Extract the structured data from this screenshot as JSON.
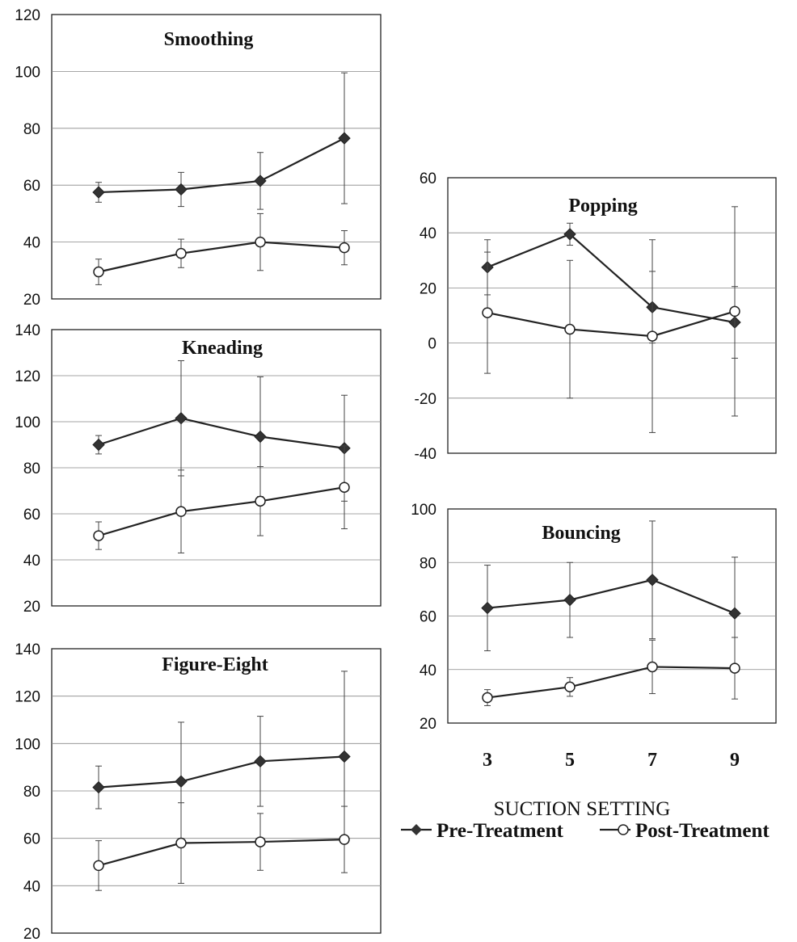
{
  "chart_data": [
    {
      "type": "line",
      "title": "Smoothing",
      "x": [
        3,
        5,
        7,
        9
      ],
      "ylim": [
        20,
        120
      ],
      "yticks": [
        20,
        40,
        60,
        80,
        100,
        120
      ],
      "grid": true,
      "series": [
        {
          "name": "Pre-Treatment",
          "marker": "diamond-filled",
          "values": [
            57.5,
            58.5,
            61.5,
            76.5
          ],
          "error": [
            3.5,
            6,
            10,
            23
          ]
        },
        {
          "name": "Post-Treatment",
          "marker": "circle-open",
          "values": [
            29.5,
            36,
            40,
            38
          ],
          "error": [
            4.5,
            5,
            10,
            6
          ]
        }
      ]
    },
    {
      "type": "line",
      "title": "Kneading",
      "x": [
        3,
        5,
        7,
        9
      ],
      "ylim": [
        20,
        140
      ],
      "yticks": [
        20,
        40,
        60,
        80,
        100,
        120,
        140
      ],
      "grid": true,
      "series": [
        {
          "name": "Pre-Treatment",
          "marker": "diamond-filled",
          "values": [
            90,
            101.5,
            93.5,
            88.5
          ],
          "error": [
            4,
            25,
            26,
            23
          ]
        },
        {
          "name": "Post-Treatment",
          "marker": "circle-open",
          "values": [
            50.5,
            61,
            65.5,
            71.5
          ],
          "error": [
            6,
            18,
            15,
            18
          ]
        }
      ]
    },
    {
      "type": "line",
      "title": "Figure-Eight",
      "x": [
        3,
        5,
        7,
        9
      ],
      "ylim": [
        20,
        140
      ],
      "yticks": [
        20,
        40,
        60,
        80,
        100,
        120,
        140
      ],
      "grid": true,
      "series": [
        {
          "name": "Pre-Treatment",
          "marker": "diamond-filled",
          "values": [
            81.5,
            84,
            92.5,
            94.5
          ],
          "error": [
            9,
            25,
            19,
            36
          ]
        },
        {
          "name": "Post-Treatment",
          "marker": "circle-open",
          "values": [
            48.5,
            58,
            58.5,
            59.5
          ],
          "error": [
            10.5,
            17,
            12,
            14
          ]
        }
      ]
    },
    {
      "type": "line",
      "title": "Popping",
      "x": [
        3,
        5,
        7,
        9
      ],
      "ylim": [
        -40,
        60
      ],
      "yticks": [
        -40,
        -20,
        0,
        20,
        40,
        60
      ],
      "grid": true,
      "series": [
        {
          "name": "Pre-Treatment",
          "marker": "diamond-filled",
          "values": [
            27.5,
            39.5,
            13,
            7.5
          ],
          "error": [
            10,
            4,
            13,
            13
          ]
        },
        {
          "name": "Post-Treatment",
          "marker": "circle-open",
          "values": [
            11,
            5,
            2.5,
            11.5
          ],
          "error": [
            22,
            25,
            35,
            38
          ]
        }
      ]
    },
    {
      "type": "line",
      "title": "Bouncing",
      "x": [
        3,
        5,
        7,
        9
      ],
      "ylim": [
        20,
        100
      ],
      "yticks": [
        20,
        40,
        60,
        80,
        100
      ],
      "grid": true,
      "xlabel": "SUCTION SETTING",
      "xticks": [
        "3",
        "5",
        "7",
        "9"
      ],
      "series": [
        {
          "name": "Pre-Treatment",
          "marker": "diamond-filled",
          "values": [
            63,
            66,
            73.5,
            61
          ],
          "error": [
            16,
            14,
            22,
            21
          ]
        },
        {
          "name": "Post-Treatment",
          "marker": "circle-open",
          "values": [
            29.5,
            33.5,
            41,
            40.5
          ],
          "error": [
            3,
            3.5,
            10,
            11.5
          ]
        }
      ]
    }
  ],
  "legend": {
    "items": [
      {
        "label": "Pre-Treatment",
        "marker": "diamond-filled"
      },
      {
        "label": "Post-Treatment",
        "marker": "circle-open"
      }
    ]
  },
  "colors": {
    "line": "#222222",
    "grid": "#888888",
    "marker_fill_pre": "#333333",
    "marker_fill_post": "#ffffff"
  }
}
